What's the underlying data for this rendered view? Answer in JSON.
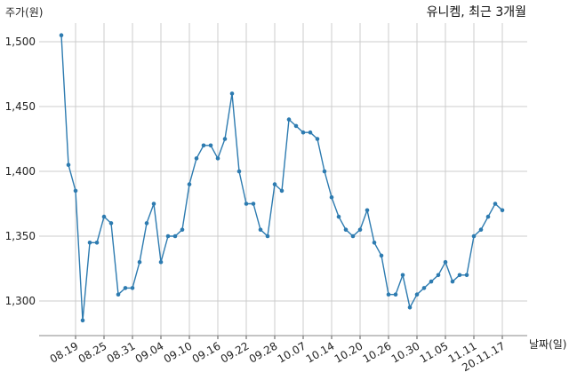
{
  "chart_data": {
    "type": "line",
    "title": "유니켐, 최근 3개월",
    "ylabel": "주가(원)",
    "xlabel": "날짜(일)",
    "ylim": [
      1275,
      1515
    ],
    "yticks": [
      1300,
      1350,
      1400,
      1450,
      1500
    ],
    "ytick_labels": [
      "1,300",
      "1,350",
      "1,400",
      "1,450",
      "1,500"
    ],
    "xtick_labels": [
      "08.19",
      "08.25",
      "08.31",
      "09.04",
      "09.10",
      "09.16",
      "09.22",
      "09.28",
      "10.07",
      "10.14",
      "10.20",
      "10.26",
      "10.30",
      "11.05",
      "11.11",
      "20.11.17"
    ],
    "xtick_index": [
      2,
      6,
      10,
      14,
      18,
      22,
      26,
      30,
      34,
      38,
      42,
      46,
      50,
      54,
      58,
      62
    ],
    "grid": true,
    "line_color": "#2d7bb0",
    "grid_color": "#cccccc",
    "series": [
      {
        "name": "",
        "values": [
          1505,
          1405,
          1385,
          1285,
          1345,
          1345,
          1365,
          1360,
          1305,
          1310,
          1310,
          1330,
          1360,
          1375,
          1330,
          1350,
          1350,
          1355,
          1390,
          1410,
          1420,
          1420,
          1410,
          1425,
          1460,
          1400,
          1375,
          1375,
          1355,
          1350,
          1390,
          1385,
          1440,
          1435,
          1430,
          1430,
          1425,
          1400,
          1380,
          1365,
          1355,
          1350,
          1355,
          1370,
          1345,
          1335,
          1305,
          1305,
          1320,
          1295,
          1305,
          1310,
          1315,
          1320,
          1330,
          1315,
          1320,
          1320,
          1350,
          1355,
          1365,
          1375,
          1370
        ]
      }
    ]
  }
}
